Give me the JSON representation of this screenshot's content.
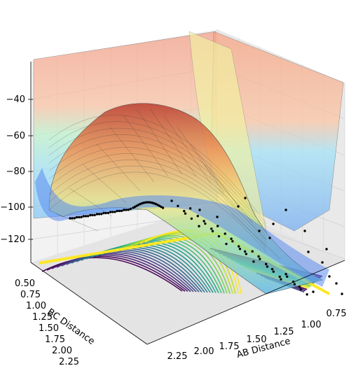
{
  "chart_data": {
    "type": "surface",
    "title": "",
    "xlabel": "AB Distance",
    "ylabel": "BC Distance",
    "zlabel": "",
    "xlim": [
      0.6,
      2.4
    ],
    "ylim": [
      0.4,
      2.4
    ],
    "zlim": [
      -135,
      -20
    ],
    "x_ticks": [
      "0.75",
      "1.00",
      "1.25",
      "1.50",
      "1.75",
      "2.00",
      "2.25"
    ],
    "y_ticks": [
      "0.50",
      "0.75",
      "1.00",
      "1.25",
      "1.50",
      "1.75",
      "2.00",
      "2.25"
    ],
    "z_ticks": [
      "−40",
      "−60",
      "−80",
      "−100",
      "−120"
    ],
    "z_tick_values": [
      -40,
      -60,
      -80,
      -100,
      -120
    ],
    "surface_colormap": "jet",
    "contour_colormap": "viridis",
    "trajectory_color": "#000000",
    "grid": true,
    "series": [
      {
        "kind": "trajectory",
        "description_points": [
          [
            0.74,
            2.3,
            -104
          ],
          [
            0.74,
            2.0,
            -103
          ],
          [
            0.75,
            1.7,
            -102
          ],
          [
            0.77,
            1.5,
            -100
          ],
          [
            0.82,
            1.3,
            -98
          ],
          [
            0.95,
            1.05,
            -97
          ],
          [
            1.1,
            0.9,
            -99
          ],
          [
            1.3,
            0.82,
            -103
          ],
          [
            1.55,
            0.78,
            -107
          ],
          [
            1.8,
            0.76,
            -109
          ],
          [
            2.05,
            0.75,
            -110
          ],
          [
            2.3,
            0.74,
            -111
          ]
        ]
      }
    ]
  }
}
